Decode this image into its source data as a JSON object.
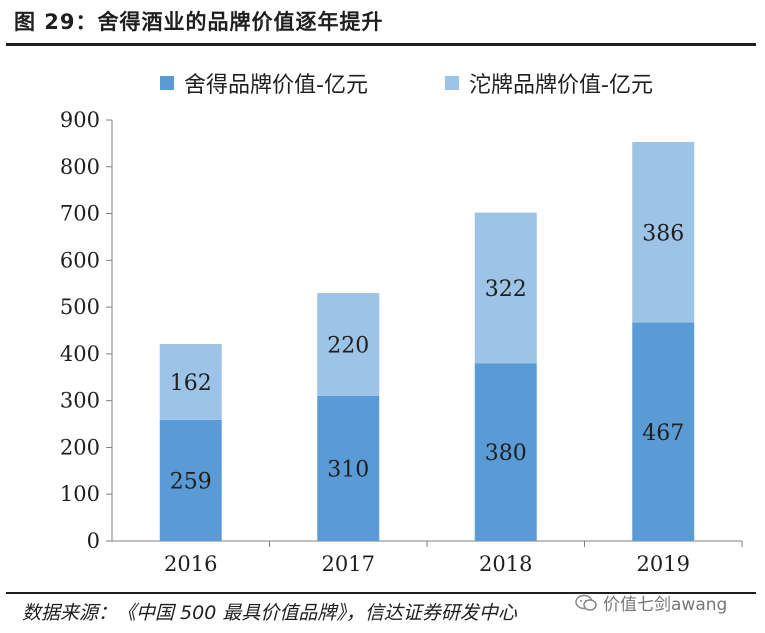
{
  "header": {
    "title": "图 29：舍得酒业的品牌价值逐年提升"
  },
  "footer": {
    "source": "数据来源：《中国 500 最具价值品牌》，信达证券研发中心",
    "watermark": "价值七剑awang"
  },
  "colors": {
    "series1": "#5b9bd5",
    "series2": "#9dc3e6",
    "axis": "#7f7f7f",
    "text": "#1f1f1f"
  },
  "chart_data": {
    "type": "bar",
    "stacked": true,
    "categories": [
      "2016",
      "2017",
      "2018",
      "2019"
    ],
    "series": [
      {
        "name": "舍得品牌价值-亿元",
        "values": [
          259,
          310,
          380,
          467
        ]
      },
      {
        "name": "沱牌品牌价值-亿元",
        "values": [
          162,
          220,
          322,
          386
        ]
      }
    ],
    "yticks": [
      "0",
      "100",
      "200",
      "300",
      "400",
      "500",
      "600",
      "700",
      "800",
      "900"
    ],
    "ylim": [
      0,
      900
    ],
    "grid": false,
    "legend_position": "top"
  }
}
